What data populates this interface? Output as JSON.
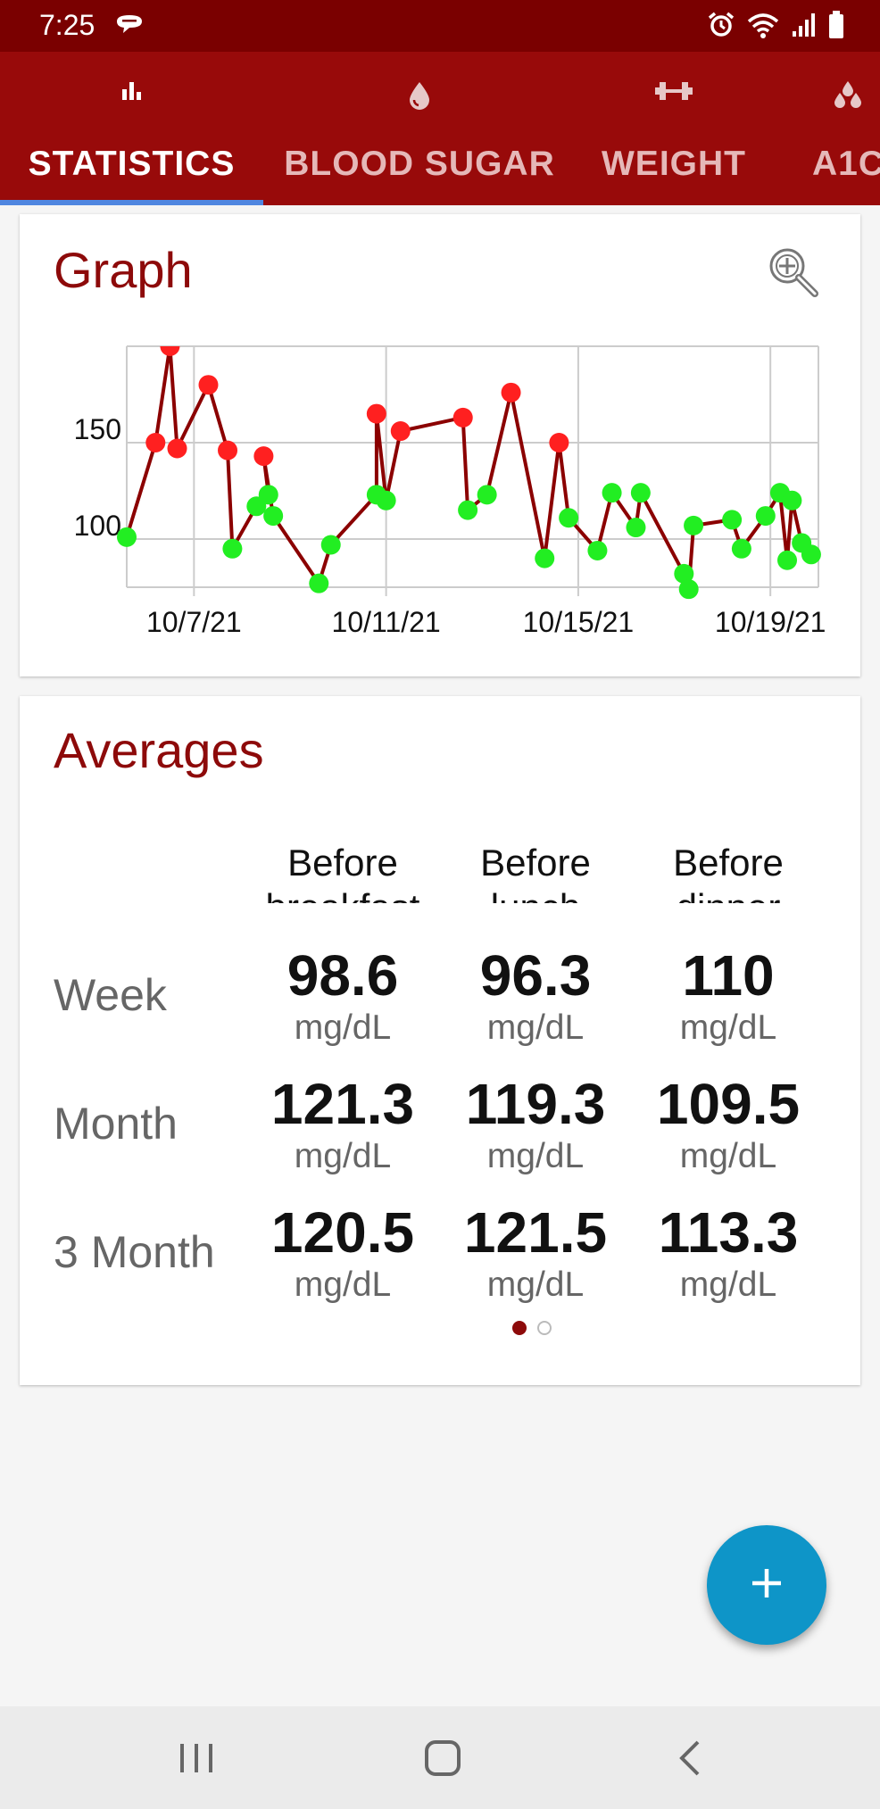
{
  "status_bar": {
    "time": "7:25"
  },
  "tabs": [
    {
      "label": "STATISTICS",
      "icon": "bar-chart-icon",
      "selected": true
    },
    {
      "label": "BLOOD SUGAR",
      "icon": "drop-icon",
      "selected": false
    },
    {
      "label": "WEIGHT",
      "icon": "dumbbell-icon",
      "selected": false
    },
    {
      "label": "A1C",
      "icon": "drops-icon",
      "selected": false
    }
  ],
  "graph_card": {
    "title": "Graph",
    "zoom_icon": "zoom-in-icon"
  },
  "chart_data": {
    "type": "line",
    "y_ticks": [
      "200",
      "150",
      "100"
    ],
    "ylim": [
      75,
      200
    ],
    "x_ticks": [
      "10/7/21",
      "10/11/21",
      "10/15/21",
      "10/19/21"
    ],
    "grid": true,
    "line_color": "#8b0000",
    "high_color": "#ff2020",
    "normal_color": "#22ee22",
    "series": [
      {
        "points": [
          {
            "x": 5.6,
            "y": 101,
            "s": "n"
          },
          {
            "x": 6.2,
            "y": 150,
            "s": "h"
          },
          {
            "x": 6.5,
            "y": 200,
            "s": "h"
          },
          {
            "x": 6.65,
            "y": 147,
            "s": "h"
          },
          {
            "x": 7.3,
            "y": 180,
            "s": "h"
          },
          {
            "x": 7.7,
            "y": 146,
            "s": "h"
          },
          {
            "x": 7.8,
            "y": 95,
            "s": "n"
          },
          {
            "x": 8.3,
            "y": 117,
            "s": "n"
          },
          {
            "x": 8.55,
            "y": 123,
            "s": "n"
          },
          {
            "x": 8.45,
            "y": 143,
            "s": "h"
          },
          {
            "x": 8.65,
            "y": 112,
            "s": "n"
          },
          {
            "x": 9.6,
            "y": 77,
            "s": "n"
          },
          {
            "x": 9.85,
            "y": 97,
            "s": "n"
          },
          {
            "x": 10.8,
            "y": 123,
            "s": "n"
          },
          {
            "x": 10.8,
            "y": 165,
            "s": "h"
          },
          {
            "x": 11.0,
            "y": 120,
            "s": "n"
          },
          {
            "x": 11.3,
            "y": 156,
            "s": "h"
          },
          {
            "x": 12.6,
            "y": 163,
            "s": "h"
          },
          {
            "x": 12.7,
            "y": 115,
            "s": "n"
          },
          {
            "x": 13.1,
            "y": 123,
            "s": "n"
          },
          {
            "x": 13.6,
            "y": 176,
            "s": "h"
          },
          {
            "x": 14.3,
            "y": 90,
            "s": "n"
          },
          {
            "x": 14.6,
            "y": 150,
            "s": "h"
          },
          {
            "x": 14.8,
            "y": 111,
            "s": "n"
          },
          {
            "x": 15.4,
            "y": 94,
            "s": "n"
          },
          {
            "x": 15.7,
            "y": 124,
            "s": "n"
          },
          {
            "x": 16.2,
            "y": 106,
            "s": "n"
          },
          {
            "x": 16.3,
            "y": 124,
            "s": "n"
          },
          {
            "x": 17.2,
            "y": 82,
            "s": "n"
          },
          {
            "x": 17.3,
            "y": 74,
            "s": "n"
          },
          {
            "x": 17.4,
            "y": 107,
            "s": "n"
          },
          {
            "x": 18.2,
            "y": 110,
            "s": "n"
          },
          {
            "x": 18.4,
            "y": 95,
            "s": "n"
          },
          {
            "x": 18.9,
            "y": 112,
            "s": "n"
          },
          {
            "x": 19.2,
            "y": 124,
            "s": "n"
          },
          {
            "x": 19.35,
            "y": 89,
            "s": "n"
          },
          {
            "x": 19.45,
            "y": 120,
            "s": "n"
          },
          {
            "x": 19.65,
            "y": 98,
            "s": "n"
          },
          {
            "x": 19.85,
            "y": 92,
            "s": "n"
          }
        ]
      }
    ],
    "x_tick_values": [
      7,
      11,
      15,
      19
    ]
  },
  "averages_card": {
    "title": "Averages",
    "columns": [
      "Before breakfast",
      "Before lunch",
      "Before dinner"
    ],
    "rows": [
      {
        "label": "Week",
        "values": [
          "98.6",
          "96.3",
          "110"
        ]
      },
      {
        "label": "Month",
        "values": [
          "121.3",
          "119.3",
          "109.5"
        ]
      },
      {
        "label": "3 Month",
        "values": [
          "120.5",
          "121.5",
          "113.3"
        ]
      }
    ],
    "unit": "mg/dL",
    "page_count": 2,
    "current_page": 1
  },
  "fab": {
    "icon": "plus-icon"
  },
  "nav": {
    "recents_icon": "recents-icon",
    "home_icon": "home-icon",
    "back_icon": "back-icon"
  }
}
